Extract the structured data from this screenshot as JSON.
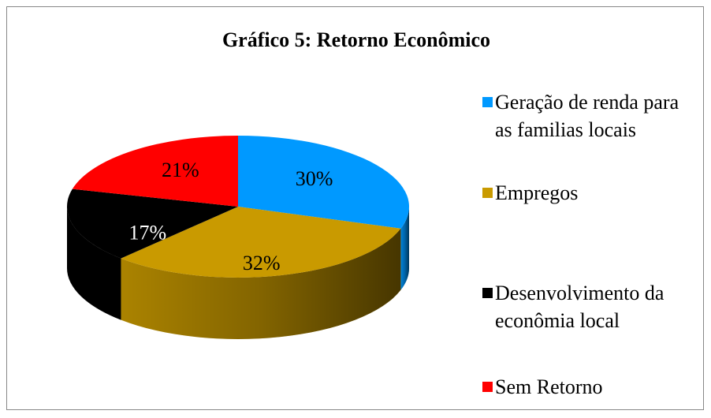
{
  "chart_data": {
    "type": "pie3d",
    "title": "Gráfico 5: Retorno  Econômico",
    "categories": [
      "Geração de renda para as familias locais",
      "Empregos",
      "Desenvolvimento da econômia local",
      "Sem Retorno"
    ],
    "values": [
      30,
      32,
      17,
      21
    ],
    "value_labels": [
      "30%",
      "32%",
      "17%",
      "21%"
    ],
    "colors": [
      "#0099ff",
      "#c99a00",
      "#000000",
      "#ff0000"
    ],
    "legend": "right"
  }
}
